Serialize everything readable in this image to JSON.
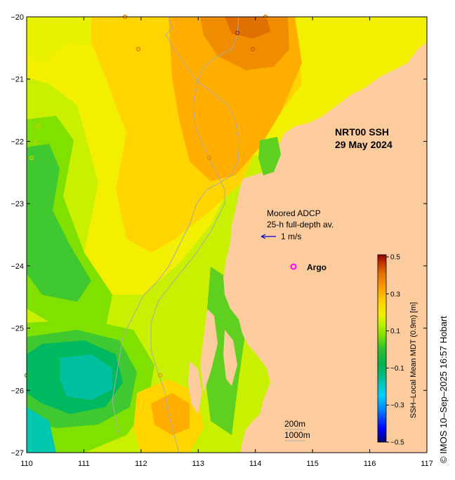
{
  "title": {
    "product": "NRT00 SSH",
    "date": "29 May 2024"
  },
  "axes": {
    "x_ticks": [
      "110",
      "111",
      "112",
      "113",
      "114",
      "115",
      "116",
      "117"
    ],
    "y_ticks": [
      "−20",
      "−21",
      "−22",
      "−23",
      "−24",
      "−25",
      "−26",
      "−27"
    ]
  },
  "legend": {
    "adcp_line1": "Moored ADCP",
    "adcp_line2": "25-h full-depth av.",
    "arrow_label": "1 m/s",
    "argo_label": "Argo",
    "arrow_color": "#0000cc",
    "argo_color": "#ff00ff"
  },
  "colorbar": {
    "title": "SSH–Local Mean MDT (0.9m) [m]",
    "ticks": [
      "0.5",
      "0.3",
      "0.1",
      "−0.1",
      "−0.3",
      "−0.5"
    ],
    "colors": [
      "#00006a",
      "#0000ff",
      "#0080ff",
      "#00d0ff",
      "#00c0a0",
      "#00b050",
      "#30c030",
      "#80e000",
      "#c0f000",
      "#f0f000",
      "#ffd000",
      "#ffa000",
      "#e07000",
      "#c03000",
      "#900000"
    ]
  },
  "depth_legend": {
    "contour_200": "200m",
    "contour_1000": "1000m"
  },
  "credit": "© IMOS 10–Sep–2025 16:57 Hobart",
  "colors": {
    "land": "#fccc9e",
    "bathymetry": "#aaaaaa"
  }
}
